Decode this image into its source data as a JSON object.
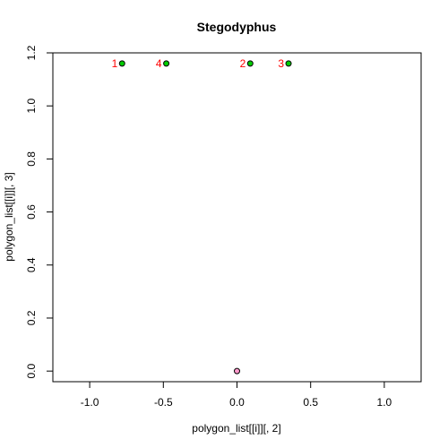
{
  "chart_data": {
    "type": "scatter",
    "title": "Stegodyphus",
    "xlabel": "polygon_list[[i]][, 2]",
    "ylabel": "polygon_list[[i]][, 3]",
    "xlim": [
      -1.25,
      1.25
    ],
    "ylim": [
      -0.04,
      1.2
    ],
    "xticks": [
      -1.0,
      -0.5,
      0.0,
      0.5,
      1.0
    ],
    "xtick_labels": [
      "-1.0",
      "-0.5",
      "0.0",
      "0.5",
      "1.0"
    ],
    "yticks": [
      0.0,
      0.2,
      0.4,
      0.6,
      0.8,
      1.0,
      1.2
    ],
    "ytick_labels": [
      "0.0",
      "0.2",
      "0.4",
      "0.6",
      "0.8",
      "1.0",
      "1.2"
    ],
    "grid": false,
    "label_color": "#ff0000",
    "series": [
      {
        "color": "#00cc00",
        "points": [
          {
            "x": -0.78,
            "y": 1.16,
            "label": "1"
          },
          {
            "x": 0.09,
            "y": 1.16,
            "label": "2"
          },
          {
            "x": 0.35,
            "y": 1.16,
            "label": "3"
          },
          {
            "x": -0.48,
            "y": 1.16,
            "label": "4"
          }
        ]
      },
      {
        "color": "#ff99cc",
        "points": [
          {
            "x": 0.0,
            "y": 0.0,
            "label": ""
          }
        ]
      }
    ]
  }
}
